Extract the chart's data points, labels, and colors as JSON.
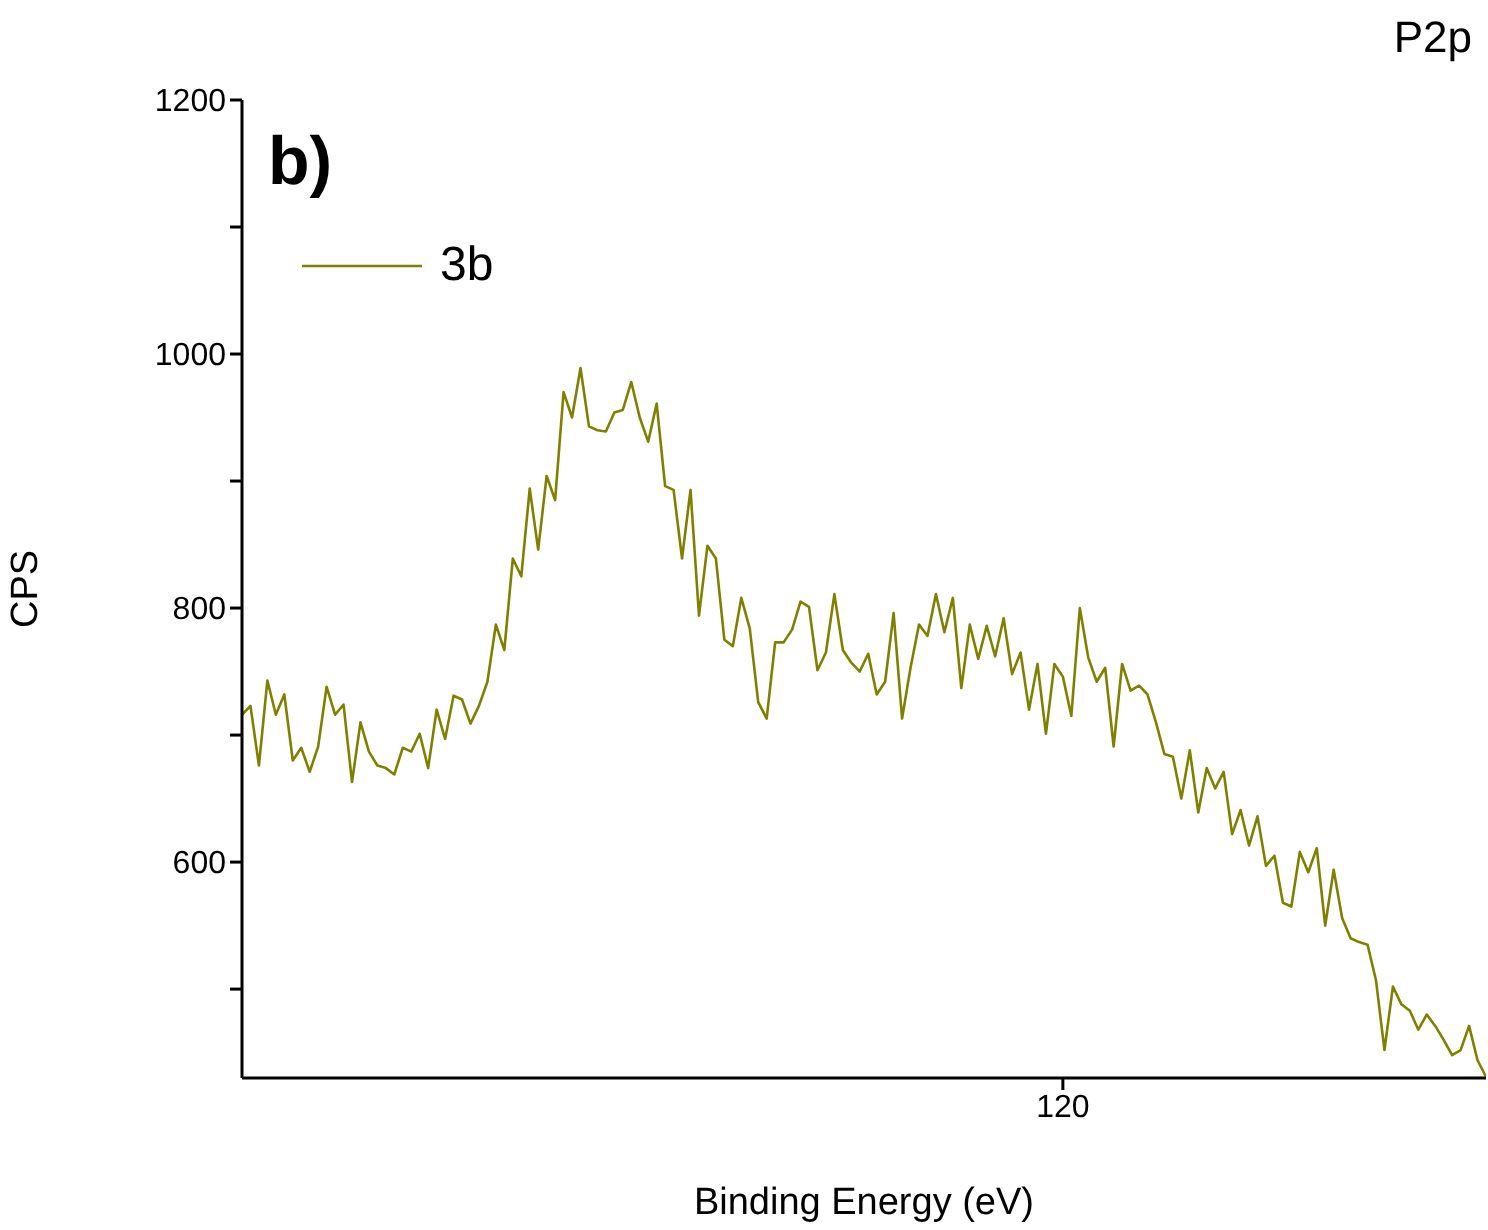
{
  "chart_data": {
    "type": "line",
    "title": "P2p",
    "xlabel": "Binding Energy (eV)",
    "ylabel": "CPS",
    "annotations": [
      "b)"
    ],
    "categories": [
      null,
      null,
      null,
      null,
      null,
      null,
      null,
      null,
      null,
      null,
      null,
      null,
      null,
      null,
      null,
      null,
      null,
      null,
      null,
      null,
      null,
      null,
      null,
      null,
      null,
      null,
      null,
      null,
      null,
      null,
      null,
      null,
      null,
      null,
      null,
      null,
      null,
      null,
      null,
      null,
      null,
      null,
      null,
      null,
      null,
      null,
      null,
      null,
      null,
      null,
      null,
      null,
      null,
      null,
      null,
      null,
      null,
      null,
      null,
      null,
      null,
      null,
      null,
      null,
      null,
      null,
      null,
      null,
      null,
      null,
      null,
      null,
      null,
      null,
      null,
      null,
      null,
      null,
      null,
      null,
      null,
      null,
      null,
      null,
      null,
      null,
      null,
      null,
      null,
      null,
      null,
      null,
      null,
      null,
      null,
      null,
      null,
      "120",
      null,
      null,
      null,
      null,
      null,
      null,
      null,
      null,
      null,
      null,
      null,
      null,
      null,
      null,
      null,
      null,
      null,
      null,
      null,
      null,
      null,
      null,
      null,
      null,
      null,
      null,
      null,
      null,
      null,
      null,
      null,
      null,
      null,
      null,
      null,
      null,
      null,
      null,
      null,
      null,
      null,
      null,
      null,
      null,
      null,
      null,
      null,
      null,
      null,
      null
    ],
    "series": [
      {
        "name": "3b",
        "color": "#808000",
        "values": [
          716,
          723,
          676,
          743,
          716,
          732,
          680,
          690,
          671,
          691,
          738,
          716,
          724,
          663,
          710,
          687,
          676,
          674,
          669,
          690,
          687,
          701,
          674,
          720,
          697,
          731,
          728,
          709,
          723,
          742,
          787,
          767,
          839,
          825,
          894,
          846,
          904,
          885,
          970,
          950,
          989,
          943,
          940,
          939,
          954,
          956,
          978,
          950,
          931,
          961,
          896,
          893,
          839,
          893,
          794,
          849,
          839,
          775,
          770,
          808,
          784,
          726,
          713,
          773,
          773,
          783,
          805,
          801,
          751,
          765,
          811,
          767,
          757,
          750,
          764,
          732,
          742,
          796,
          713,
          753,
          787,
          778,
          811,
          781,
          808,
          737,
          787,
          760,
          786,
          762,
          792,
          748,
          765,
          720,
          756,
          701,
          756,
          746,
          715,
          800,
          761,
          742,
          753,
          691,
          756,
          735,
          739,
          732,
          710,
          685,
          683,
          650,
          688,
          639,
          674,
          658,
          671,
          622,
          641,
          613,
          636,
          597,
          605,
          568,
          565,
          608,
          592,
          611,
          550,
          594,
          556,
          540,
          537,
          535,
          507,
          452,
          502,
          488,
          483,
          468,
          480,
          471,
          460,
          448,
          452,
          471,
          444,
          431
        ]
      }
    ],
    "ylim": [
      430,
      1200
    ],
    "yticks": [
      {
        "value": 500,
        "label": null
      },
      600,
      {
        "value": 700,
        "label": null
      },
      800,
      {
        "value": 900,
        "label": null
      },
      1000,
      {
        "value": 1100,
        "label": null
      },
      1200
    ],
    "grid": false,
    "legend": "top left",
    "marker": "none",
    "line_style": "solid"
  }
}
